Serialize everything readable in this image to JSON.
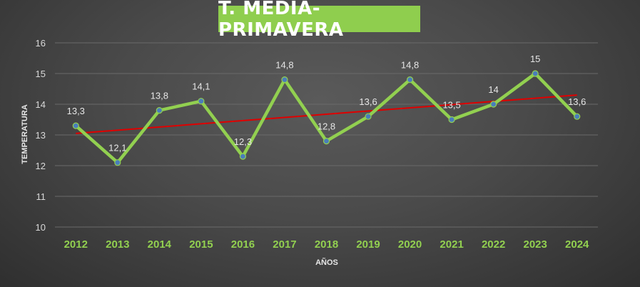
{
  "chart_data": {
    "type": "line",
    "title": "T. MEDIA-PRIMAVERA",
    "xlabel": "AÑOS",
    "ylabel": "TEMPERATURA",
    "ylim": [
      10,
      16
    ],
    "yticks": [
      "10",
      "11",
      "12",
      "13",
      "14",
      "15",
      "16"
    ],
    "categories": [
      "2012",
      "2013",
      "2014",
      "2015",
      "2016",
      "2017",
      "2018",
      "2019",
      "2020",
      "2021",
      "2022",
      "2023",
      "2024"
    ],
    "series": [
      {
        "values": [
          13.3,
          12.1,
          13.8,
          14.1,
          12.3,
          14.8,
          12.8,
          13.6,
          14.8,
          13.5,
          14,
          15,
          13.6
        ],
        "labels": [
          "13,3",
          "12,1",
          "13,8",
          "14,1",
          "12,3",
          "14,8",
          "12,8",
          "13,6",
          "14,8",
          "13,5",
          "14",
          "15",
          "13,6"
        ],
        "line_color": "#92d050",
        "marker_color": "#4a7ebb"
      }
    ],
    "trendline": {
      "type": "linear",
      "color": "#e00000",
      "start": 13.05,
      "end": 14.3
    },
    "grid": true,
    "legend": "none"
  }
}
